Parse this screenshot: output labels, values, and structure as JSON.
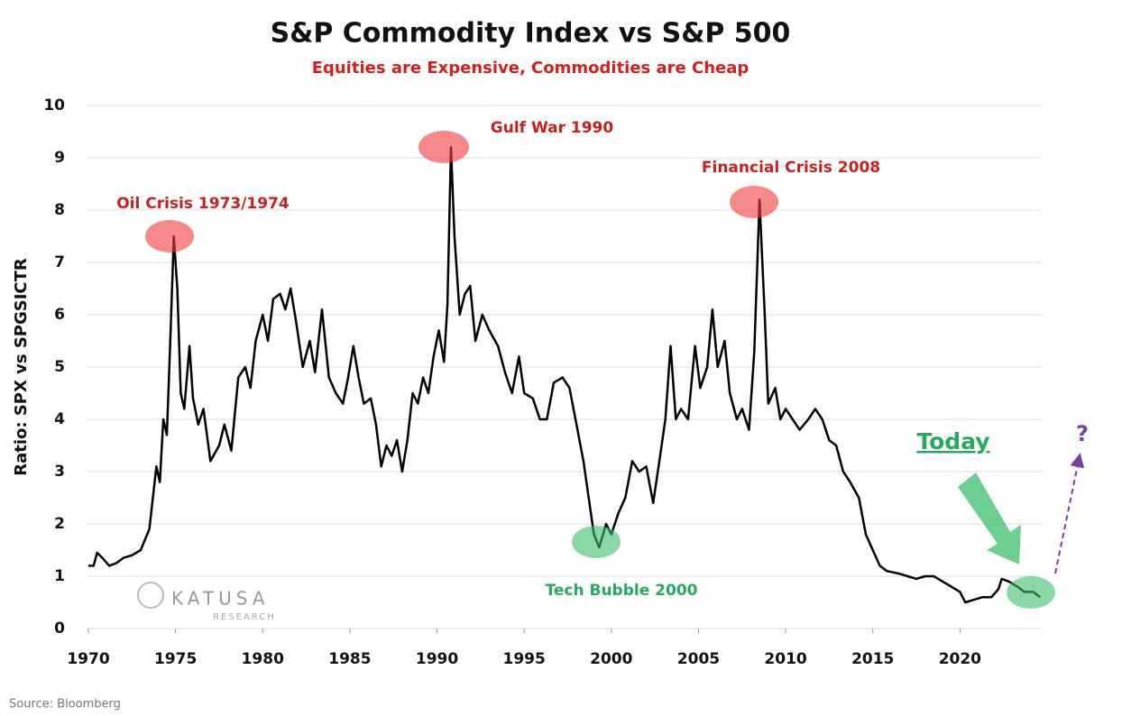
{
  "chart_data": {
    "type": "line",
    "title": "S&P Commodity Index vs S&P 500",
    "subtitle": "Equities are Expensive, Commodities are Cheap",
    "y_label": "Ratio: SPX vs SPGSICTR",
    "source": "Source: Bloomberg",
    "watermark": [
      "KATUSA",
      "RESEARCH"
    ],
    "annotations": [
      "Oil Crisis 1973/1974",
      "Gulf War 1990",
      "Financial Crisis 2008",
      "Tech Bubble 2000",
      "Today",
      "?"
    ],
    "color": "#000000",
    "grid": true,
    "xlim": [
      1970,
      2025
    ],
    "xticks": [
      1970,
      1975,
      1980,
      1985,
      1990,
      1995,
      2000,
      2005,
      2010,
      2015,
      2020
    ],
    "ylim": [
      0,
      10
    ],
    "yticks": [
      0,
      1,
      2,
      3,
      4,
      5,
      6,
      7,
      8,
      9,
      10
    ],
    "x": [
      1970.0,
      1970.3,
      1970.5,
      1970.8,
      1971.2,
      1971.6,
      1972.0,
      1972.5,
      1973.0,
      1973.5,
      1973.7,
      1973.9,
      1974.1,
      1974.3,
      1974.5,
      1974.7,
      1974.9,
      1975.1,
      1975.3,
      1975.5,
      1975.8,
      1976.0,
      1976.3,
      1976.6,
      1977.0,
      1977.5,
      1977.8,
      1978.2,
      1978.6,
      1979.0,
      1979.3,
      1979.6,
      1980.0,
      1980.3,
      1980.6,
      1981.0,
      1981.3,
      1981.6,
      1981.9,
      1982.3,
      1982.7,
      1983.0,
      1983.4,
      1983.8,
      1984.2,
      1984.6,
      1984.9,
      1985.2,
      1985.5,
      1985.8,
      1986.2,
      1986.5,
      1986.8,
      1987.1,
      1987.4,
      1987.7,
      1988.0,
      1988.3,
      1988.6,
      1988.9,
      1989.2,
      1989.5,
      1989.8,
      1990.1,
      1990.4,
      1990.6,
      1990.8,
      1991.0,
      1991.3,
      1991.6,
      1991.9,
      1992.2,
      1992.6,
      1993.0,
      1993.5,
      1993.9,
      1994.3,
      1994.7,
      1995.0,
      1995.5,
      1995.9,
      1996.3,
      1996.7,
      1997.2,
      1997.6,
      1998.0,
      1998.4,
      1998.7,
      1999.0,
      1999.3,
      1999.7,
      2000.0,
      2000.4,
      2000.8,
      2001.2,
      2001.6,
      2002.0,
      2002.4,
      2002.8,
      2003.1,
      2003.4,
      2003.7,
      2004.0,
      2004.4,
      2004.8,
      2005.1,
      2005.5,
      2005.8,
      2006.1,
      2006.5,
      2006.8,
      2007.2,
      2007.5,
      2007.9,
      2008.2,
      2008.5,
      2008.8,
      2009.0,
      2009.4,
      2009.7,
      2010.0,
      2010.4,
      2010.8,
      2011.3,
      2011.7,
      2012.1,
      2012.5,
      2012.9,
      2013.3,
      2013.7,
      2014.2,
      2014.6,
      2015.0,
      2015.4,
      2015.8,
      2016.5,
      2017.0,
      2017.5,
      2018.0,
      2018.5,
      2019.0,
      2019.5,
      2020.0,
      2020.3,
      2020.8,
      2021.3,
      2021.8,
      2022.2,
      2022.4,
      2022.8,
      2023.3,
      2023.7,
      2024.2,
      2024.6
    ],
    "values": [
      1.2,
      1.2,
      1.45,
      1.35,
      1.2,
      1.25,
      1.35,
      1.4,
      1.5,
      1.9,
      2.5,
      3.1,
      2.8,
      4.0,
      3.7,
      5.5,
      7.5,
      6.5,
      4.5,
      4.2,
      5.4,
      4.4,
      3.9,
      4.2,
      3.2,
      3.5,
      3.9,
      3.4,
      4.8,
      5.0,
      4.6,
      5.5,
      6.0,
      5.5,
      6.3,
      6.4,
      6.1,
      6.5,
      5.9,
      5.0,
      5.5,
      4.9,
      6.1,
      4.8,
      4.5,
      4.3,
      4.8,
      5.4,
      4.8,
      4.3,
      4.4,
      3.9,
      3.1,
      3.5,
      3.3,
      3.6,
      3.0,
      3.6,
      4.5,
      4.3,
      4.8,
      4.5,
      5.2,
      5.7,
      5.1,
      6.2,
      9.2,
      7.5,
      6.0,
      6.4,
      6.55,
      5.5,
      6.0,
      5.7,
      5.4,
      4.9,
      4.5,
      5.2,
      4.5,
      4.4,
      4.0,
      4.0,
      4.7,
      4.8,
      4.6,
      3.9,
      3.2,
      2.5,
      1.8,
      1.55,
      2.0,
      1.8,
      2.2,
      2.5,
      3.2,
      3.0,
      3.1,
      2.4,
      3.3,
      4.0,
      5.4,
      4.0,
      4.2,
      4.0,
      5.4,
      4.6,
      5.0,
      6.1,
      5.0,
      5.5,
      4.5,
      4.0,
      4.2,
      3.8,
      5.3,
      8.2,
      6.0,
      4.3,
      4.6,
      4.0,
      4.2,
      4.0,
      3.8,
      4.0,
      4.2,
      4.0,
      3.6,
      3.5,
      3.0,
      2.8,
      2.5,
      1.8,
      1.5,
      1.2,
      1.1,
      1.05,
      1.0,
      0.95,
      1.0,
      1.0,
      0.9,
      0.8,
      0.7,
      0.5,
      0.55,
      0.6,
      0.6,
      0.75,
      0.95,
      0.9,
      0.8,
      0.7,
      0.7,
      0.6
    ]
  }
}
